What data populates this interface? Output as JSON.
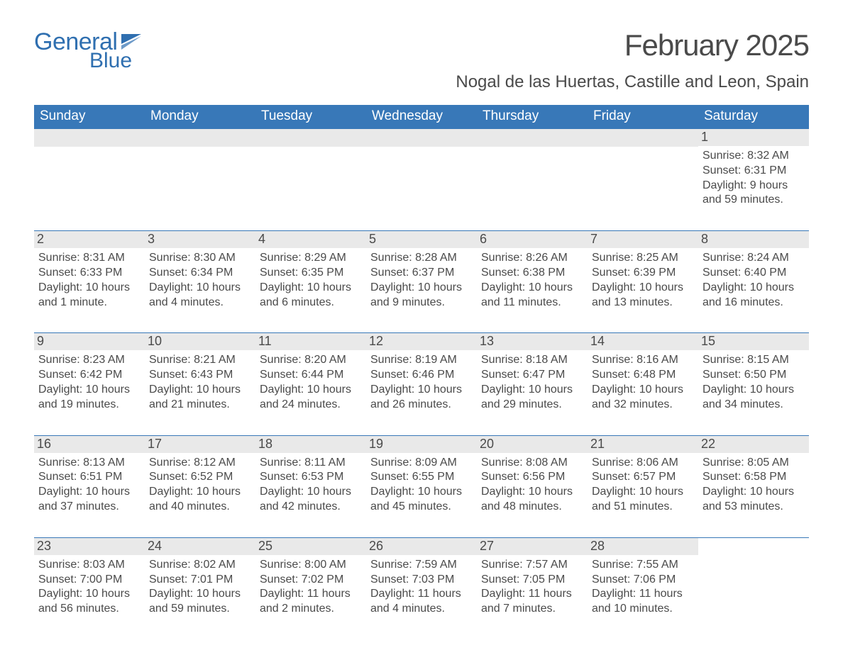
{
  "logo": {
    "text1": "General",
    "text2": "Blue"
  },
  "title": "February 2025",
  "location": "Nogal de las Huertas, Castille and Leon, Spain",
  "colors": {
    "header_bg": "#3878b8",
    "header_fg": "#ffffff",
    "daybar_bg": "#e9e9e9",
    "text": "#4a4a4a",
    "logo": "#2f6fb0",
    "rule": "#3878b8",
    "background": "#ffffff"
  },
  "fonts": {
    "title_size": 42,
    "location_size": 24,
    "weekday_size": 19,
    "daynum_size": 18,
    "body_size": 16
  },
  "weekdays": [
    "Sunday",
    "Monday",
    "Tuesday",
    "Wednesday",
    "Thursday",
    "Friday",
    "Saturday"
  ],
  "weeks": [
    [
      {
        "day": "",
        "lines": []
      },
      {
        "day": "",
        "lines": []
      },
      {
        "day": "",
        "lines": []
      },
      {
        "day": "",
        "lines": []
      },
      {
        "day": "",
        "lines": []
      },
      {
        "day": "",
        "lines": []
      },
      {
        "day": "1",
        "lines": [
          "Sunrise: 8:32 AM",
          "Sunset: 6:31 PM",
          "Daylight: 9 hours and 59 minutes."
        ]
      }
    ],
    [
      {
        "day": "2",
        "lines": [
          "Sunrise: 8:31 AM",
          "Sunset: 6:33 PM",
          "Daylight: 10 hours and 1 minute."
        ]
      },
      {
        "day": "3",
        "lines": [
          "Sunrise: 8:30 AM",
          "Sunset: 6:34 PM",
          "Daylight: 10 hours and 4 minutes."
        ]
      },
      {
        "day": "4",
        "lines": [
          "Sunrise: 8:29 AM",
          "Sunset: 6:35 PM",
          "Daylight: 10 hours and 6 minutes."
        ]
      },
      {
        "day": "5",
        "lines": [
          "Sunrise: 8:28 AM",
          "Sunset: 6:37 PM",
          "Daylight: 10 hours and 9 minutes."
        ]
      },
      {
        "day": "6",
        "lines": [
          "Sunrise: 8:26 AM",
          "Sunset: 6:38 PM",
          "Daylight: 10 hours and 11 minutes."
        ]
      },
      {
        "day": "7",
        "lines": [
          "Sunrise: 8:25 AM",
          "Sunset: 6:39 PM",
          "Daylight: 10 hours and 13 minutes."
        ]
      },
      {
        "day": "8",
        "lines": [
          "Sunrise: 8:24 AM",
          "Sunset: 6:40 PM",
          "Daylight: 10 hours and 16 minutes."
        ]
      }
    ],
    [
      {
        "day": "9",
        "lines": [
          "Sunrise: 8:23 AM",
          "Sunset: 6:42 PM",
          "Daylight: 10 hours and 19 minutes."
        ]
      },
      {
        "day": "10",
        "lines": [
          "Sunrise: 8:21 AM",
          "Sunset: 6:43 PM",
          "Daylight: 10 hours and 21 minutes."
        ]
      },
      {
        "day": "11",
        "lines": [
          "Sunrise: 8:20 AM",
          "Sunset: 6:44 PM",
          "Daylight: 10 hours and 24 minutes."
        ]
      },
      {
        "day": "12",
        "lines": [
          "Sunrise: 8:19 AM",
          "Sunset: 6:46 PM",
          "Daylight: 10 hours and 26 minutes."
        ]
      },
      {
        "day": "13",
        "lines": [
          "Sunrise: 8:18 AM",
          "Sunset: 6:47 PM",
          "Daylight: 10 hours and 29 minutes."
        ]
      },
      {
        "day": "14",
        "lines": [
          "Sunrise: 8:16 AM",
          "Sunset: 6:48 PM",
          "Daylight: 10 hours and 32 minutes."
        ]
      },
      {
        "day": "15",
        "lines": [
          "Sunrise: 8:15 AM",
          "Sunset: 6:50 PM",
          "Daylight: 10 hours and 34 minutes."
        ]
      }
    ],
    [
      {
        "day": "16",
        "lines": [
          "Sunrise: 8:13 AM",
          "Sunset: 6:51 PM",
          "Daylight: 10 hours and 37 minutes."
        ]
      },
      {
        "day": "17",
        "lines": [
          "Sunrise: 8:12 AM",
          "Sunset: 6:52 PM",
          "Daylight: 10 hours and 40 minutes."
        ]
      },
      {
        "day": "18",
        "lines": [
          "Sunrise: 8:11 AM",
          "Sunset: 6:53 PM",
          "Daylight: 10 hours and 42 minutes."
        ]
      },
      {
        "day": "19",
        "lines": [
          "Sunrise: 8:09 AM",
          "Sunset: 6:55 PM",
          "Daylight: 10 hours and 45 minutes."
        ]
      },
      {
        "day": "20",
        "lines": [
          "Sunrise: 8:08 AM",
          "Sunset: 6:56 PM",
          "Daylight: 10 hours and 48 minutes."
        ]
      },
      {
        "day": "21",
        "lines": [
          "Sunrise: 8:06 AM",
          "Sunset: 6:57 PM",
          "Daylight: 10 hours and 51 minutes."
        ]
      },
      {
        "day": "22",
        "lines": [
          "Sunrise: 8:05 AM",
          "Sunset: 6:58 PM",
          "Daylight: 10 hours and 53 minutes."
        ]
      }
    ],
    [
      {
        "day": "23",
        "lines": [
          "Sunrise: 8:03 AM",
          "Sunset: 7:00 PM",
          "Daylight: 10 hours and 56 minutes."
        ]
      },
      {
        "day": "24",
        "lines": [
          "Sunrise: 8:02 AM",
          "Sunset: 7:01 PM",
          "Daylight: 10 hours and 59 minutes."
        ]
      },
      {
        "day": "25",
        "lines": [
          "Sunrise: 8:00 AM",
          "Sunset: 7:02 PM",
          "Daylight: 11 hours and 2 minutes."
        ]
      },
      {
        "day": "26",
        "lines": [
          "Sunrise: 7:59 AM",
          "Sunset: 7:03 PM",
          "Daylight: 11 hours and 4 minutes."
        ]
      },
      {
        "day": "27",
        "lines": [
          "Sunrise: 7:57 AM",
          "Sunset: 7:05 PM",
          "Daylight: 11 hours and 7 minutes."
        ]
      },
      {
        "day": "28",
        "lines": [
          "Sunrise: 7:55 AM",
          "Sunset: 7:06 PM",
          "Daylight: 11 hours and 10 minutes."
        ]
      },
      {
        "day": "",
        "lines": []
      }
    ]
  ]
}
